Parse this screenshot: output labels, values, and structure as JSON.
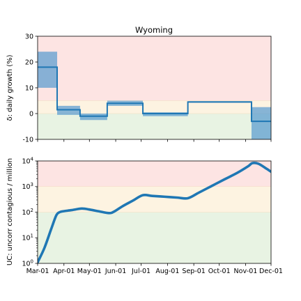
{
  "chart_data": [
    {
      "type": "line",
      "title": "Wyoming",
      "ylabel": "δ: daily growth (%)",
      "ylim": [
        -10,
        30
      ],
      "yticks": [
        -10,
        0,
        10,
        20,
        30
      ],
      "xlim": [
        0,
        275
      ],
      "xticks": [
        0,
        31,
        61,
        92,
        122,
        153,
        184,
        214,
        245,
        275
      ],
      "bands": [
        {
          "from": -10,
          "to": 0,
          "color": "#e8f3e3"
        },
        {
          "from": 0,
          "to": 5,
          "color": "#fdf3e1"
        },
        {
          "from": 5,
          "to": 30,
          "color": "#fde4e3"
        }
      ],
      "segments": [
        {
          "x0": 0,
          "x1": 23,
          "y": 18,
          "lo": 10,
          "hi": 24
        },
        {
          "x0": 23,
          "x1": 50,
          "y": 1.5,
          "lo": -0.5,
          "hi": 3
        },
        {
          "x0": 50,
          "x1": 82,
          "y": -1,
          "lo": -2.5,
          "hi": 0
        },
        {
          "x0": 82,
          "x1": 124,
          "y": 4,
          "lo": 3,
          "hi": 5
        },
        {
          "x0": 124,
          "x1": 177,
          "y": 0,
          "lo": -1,
          "hi": 0.5
        },
        {
          "x0": 177,
          "x1": 252,
          "y": 4.5,
          "lo": 4.3,
          "hi": 4.8
        },
        {
          "x0": 252,
          "x1": 275,
          "y": -3,
          "lo": -10,
          "hi": 2.5
        }
      ],
      "line_color": "#1f77b4",
      "band_color": "#5f9fd0"
    },
    {
      "type": "line",
      "ylabel": "UC: uncorr contagious / million",
      "yscale": "log",
      "ylim": [
        1,
        10000
      ],
      "yticks": [
        {
          "value": 1,
          "base": "10",
          "exp": "0"
        },
        {
          "value": 10,
          "base": "10",
          "exp": "1"
        },
        {
          "value": 100,
          "base": "10",
          "exp": "2"
        },
        {
          "value": 1000,
          "base": "10",
          "exp": "3"
        },
        {
          "value": 10000,
          "base": "10",
          "exp": "4"
        }
      ],
      "xlim": [
        0,
        275
      ],
      "xticks": [
        0,
        31,
        61,
        92,
        122,
        153,
        184,
        214,
        245,
        275
      ],
      "xtick_labels": [
        "Mar-01",
        "Apr-01",
        "May-01",
        "Jun-01",
        "Jul-01",
        "Aug-01",
        "Sep-01",
        "Oct-01",
        "Nov-01",
        "Dec-01"
      ],
      "bands": [
        {
          "from": 1,
          "to": 100,
          "color": "#e8f3e3"
        },
        {
          "from": 100,
          "to": 1000,
          "color": "#fdf3e1"
        },
        {
          "from": 1000,
          "to": 10000,
          "color": "#fde4e3"
        }
      ],
      "series": [
        {
          "x": [
            0,
            8,
            16,
            22,
            26,
            30,
            40,
            52,
            62,
            72,
            84,
            90,
            100,
            112,
            124,
            135,
            150,
            165,
            177,
            190,
            205,
            220,
            235,
            248,
            253,
            260,
            268,
            275
          ],
          "values": [
            1.1,
            4,
            22,
            75,
            100,
            108,
            120,
            138,
            125,
            108,
            92,
            105,
            170,
            280,
            460,
            430,
            400,
            370,
            350,
            580,
            1050,
            1900,
            3400,
            6200,
            8200,
            7800,
            5400,
            3800
          ]
        }
      ],
      "line_color": "#1f77b4"
    }
  ]
}
